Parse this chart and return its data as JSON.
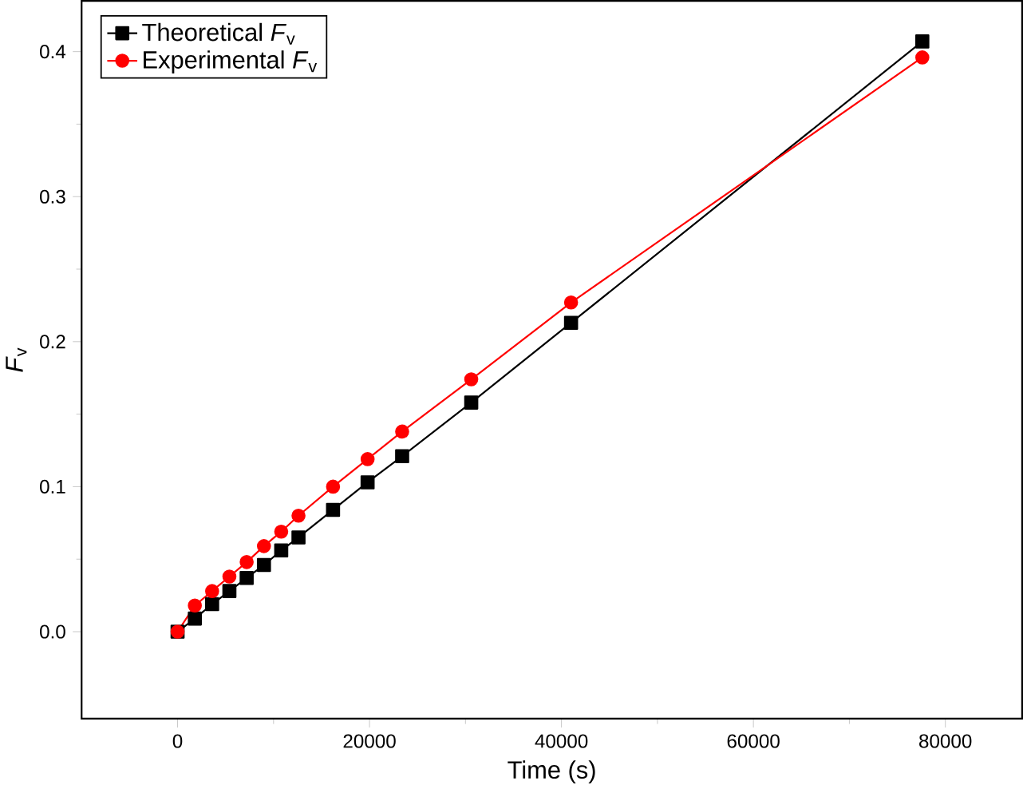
{
  "chart_data": {
    "type": "line",
    "xlabel": "Time (s)",
    "ylabel": "*F*$_{v}$",
    "x": [
      0,
      1800,
      3600,
      5400,
      7200,
      9000,
      10800,
      12600,
      16200,
      19800,
      23400,
      30600,
      41000,
      77600
    ],
    "series": [
      {
        "name": "Theoretical *F*$_{v}$",
        "color": "#000000",
        "marker": "square",
        "values": [
          0,
          0.009,
          0.019,
          0.028,
          0.037,
          0.046,
          0.056,
          0.065,
          0.084,
          0.103,
          0.121,
          0.158,
          0.213,
          0.407
        ]
      },
      {
        "name": "Experimental *F*$_{v}$",
        "color": "#ff0000",
        "marker": "circle",
        "values": [
          0,
          0.018,
          0.028,
          0.038,
          0.048,
          0.059,
          0.069,
          0.08,
          0.1,
          0.119,
          0.138,
          0.174,
          0.227,
          0.396
        ]
      }
    ],
    "xlim": [
      -10000,
      88000
    ],
    "ylim": [
      -0.06,
      0.435
    ],
    "xticks": [
      0,
      20000,
      40000,
      60000,
      80000
    ],
    "yticks": [
      {
        "value": 0,
        "label": "0.0"
      },
      0.1,
      0.2,
      0.3,
      0.4
    ],
    "legend": "top left",
    "grid": false,
    "line_style": "solid"
  }
}
